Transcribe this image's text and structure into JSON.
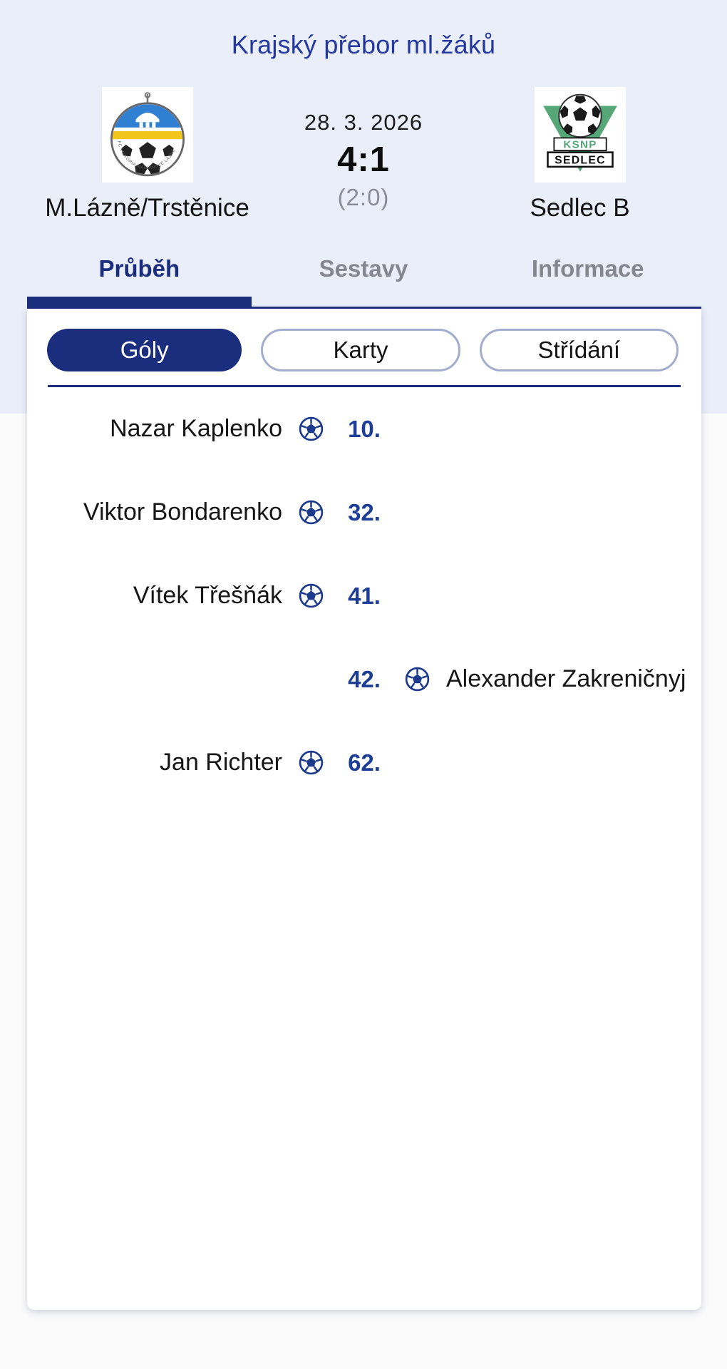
{
  "colors": {
    "navy": "#1b2e7d",
    "title_blue": "#23379f",
    "minute_blue": "#1c3e96",
    "inactive_gray": "#85878f",
    "halftime_gray": "#8a8d95",
    "pill_border": "#a3adcd",
    "bg_top": "#e9eef9",
    "bg_lower": "#fbfbfc",
    "crest_green": "#55a778",
    "crest_blue": "#2f7fd2",
    "crest_yellow": "#f2c51d"
  },
  "header": {
    "competition": "Krajský přebor ml.žáků",
    "date": "28. 3. 2026",
    "score": "4:1",
    "halftime": "(2:0)",
    "home": {
      "name": "M.Lázně/Trstěnice",
      "logo_ring_text": "FC VIKTORIA MARIÁNSKÉ LÁZNĚ"
    },
    "away": {
      "name": "Sedlec B",
      "logo_top_text": "KSNP",
      "logo_bottom_text": "SEDLEC"
    }
  },
  "tabs": [
    {
      "label": "Průběh",
      "active": true
    },
    {
      "label": "Sestavy",
      "active": false
    },
    {
      "label": "Informace",
      "active": false
    }
  ],
  "filters": [
    {
      "label": "Góly",
      "active": true
    },
    {
      "label": "Karty",
      "active": false
    },
    {
      "label": "Střídání",
      "active": false
    }
  ],
  "events": [
    {
      "side": "home",
      "player": "Nazar Kaplenko",
      "minute": "10.",
      "icon": "soccer-ball-icon"
    },
    {
      "side": "home",
      "player": "Viktor Bondarenko",
      "minute": "32.",
      "icon": "soccer-ball-icon"
    },
    {
      "side": "home",
      "player": "Vítek Třešňák",
      "minute": "41.",
      "icon": "soccer-ball-icon"
    },
    {
      "side": "away",
      "player": "Alexander Zakreničnyj",
      "minute": "42.",
      "icon": "soccer-ball-icon"
    },
    {
      "side": "home",
      "player": "Jan Richter",
      "minute": "62.",
      "icon": "soccer-ball-icon"
    }
  ]
}
